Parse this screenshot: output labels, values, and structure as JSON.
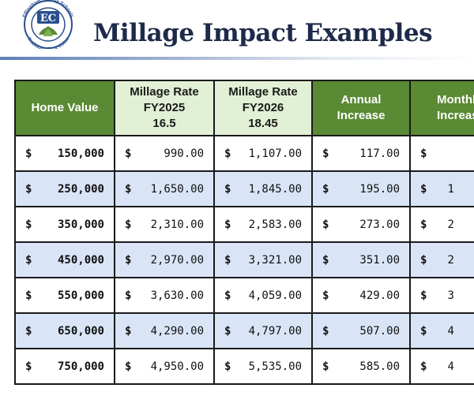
{
  "logo": {
    "letters": "EC",
    "ring_text": "Effingham County Schools",
    "motto": "Tradition with a Vision"
  },
  "title": "Millage Impact Examples",
  "colors": {
    "header_green": "#5a8a34",
    "header_pale": "#e2f0d6",
    "row_blue": "#d9e5f7",
    "title": "#1e2a4a"
  },
  "table": {
    "headers": [
      {
        "lines": [
          "Home Value"
        ]
      },
      {
        "lines": [
          "Millage Rate",
          "FY2025",
          "16.5"
        ]
      },
      {
        "lines": [
          "Millage Rate",
          "FY2026",
          "18.45"
        ]
      },
      {
        "lines": [
          "Annual",
          "Increase"
        ]
      },
      {
        "lines": [
          "Monthl",
          "Increas"
        ]
      }
    ],
    "currency": "$",
    "rows": [
      {
        "home": "150,000",
        "fy2025": "990.00",
        "fy2026": "1,107.00",
        "annual": "117.00",
        "monthly": ""
      },
      {
        "home": "250,000",
        "fy2025": "1,650.00",
        "fy2026": "1,845.00",
        "annual": "195.00",
        "monthly": "1"
      },
      {
        "home": "350,000",
        "fy2025": "2,310.00",
        "fy2026": "2,583.00",
        "annual": "273.00",
        "monthly": "2"
      },
      {
        "home": "450,000",
        "fy2025": "2,970.00",
        "fy2026": "3,321.00",
        "annual": "351.00",
        "monthly": "2"
      },
      {
        "home": "550,000",
        "fy2025": "3,630.00",
        "fy2026": "4,059.00",
        "annual": "429.00",
        "monthly": "3"
      },
      {
        "home": "650,000",
        "fy2025": "4,290.00",
        "fy2026": "4,797.00",
        "annual": "507.00",
        "monthly": "4"
      },
      {
        "home": "750,000",
        "fy2025": "4,950.00",
        "fy2026": "5,535.00",
        "annual": "585.00",
        "monthly": "4"
      }
    ]
  }
}
